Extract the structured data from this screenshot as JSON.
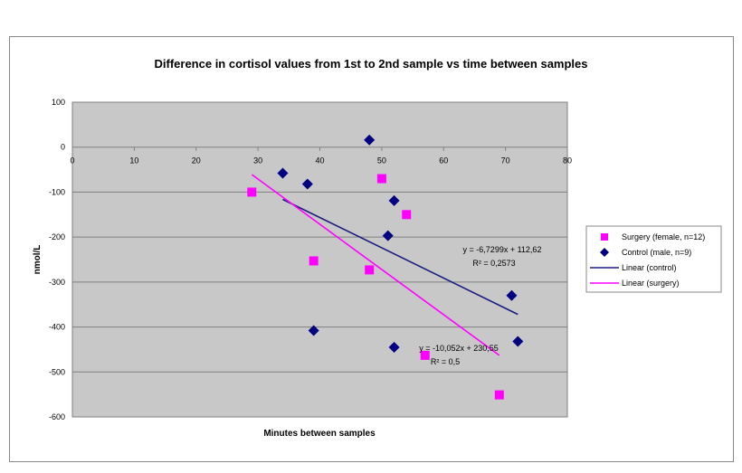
{
  "chart_data": {
    "type": "scatter",
    "title": "Difference in cortisol values from 1st to 2nd sample vs time between samples",
    "xlabel": "Minutes between samples",
    "ylabel": "nmol/L",
    "xlim": [
      0,
      80
    ],
    "ylim": [
      -600,
      100
    ],
    "xticks": [
      0,
      10,
      20,
      30,
      40,
      50,
      60,
      70,
      80
    ],
    "yticks": [
      100,
      0,
      -100,
      -200,
      -300,
      -400,
      -500,
      -600
    ],
    "grid": true,
    "legend_position": "right",
    "series": [
      {
        "name": "Surgery (female, n=12)",
        "color": "#ff00ff",
        "marker": "square",
        "points": [
          [
            29,
            -100
          ],
          [
            50,
            -70
          ],
          [
            54,
            -150
          ],
          [
            39,
            -253
          ],
          [
            48,
            -273
          ],
          [
            57,
            -463
          ],
          [
            69,
            -551
          ]
        ]
      },
      {
        "name": "Control (male, n=9)",
        "color": "#000080",
        "marker": "diamond",
        "points": [
          [
            48,
            16
          ],
          [
            34,
            -58
          ],
          [
            38,
            -82
          ],
          [
            52,
            -119
          ],
          [
            51,
            -197
          ],
          [
            39,
            -408
          ],
          [
            52,
            -445
          ],
          [
            71,
            -330
          ],
          [
            72,
            -432
          ]
        ]
      }
    ],
    "trendlines": [
      {
        "name": "Linear (control)",
        "color": "#1c1c80",
        "slope": -6.7299,
        "intercept": 112.62,
        "x_range": [
          34,
          72
        ],
        "equation": "y = -6,7299x + 112,62",
        "r2": "R² = 0,2573"
      },
      {
        "name": "Linear (surgery)",
        "color": "#ff00ff",
        "slope": -10.052,
        "intercept": 230.55,
        "x_range": [
          29,
          69
        ],
        "equation": "y = -10,052x + 230,55",
        "r2": "R² = 0,5"
      }
    ]
  }
}
